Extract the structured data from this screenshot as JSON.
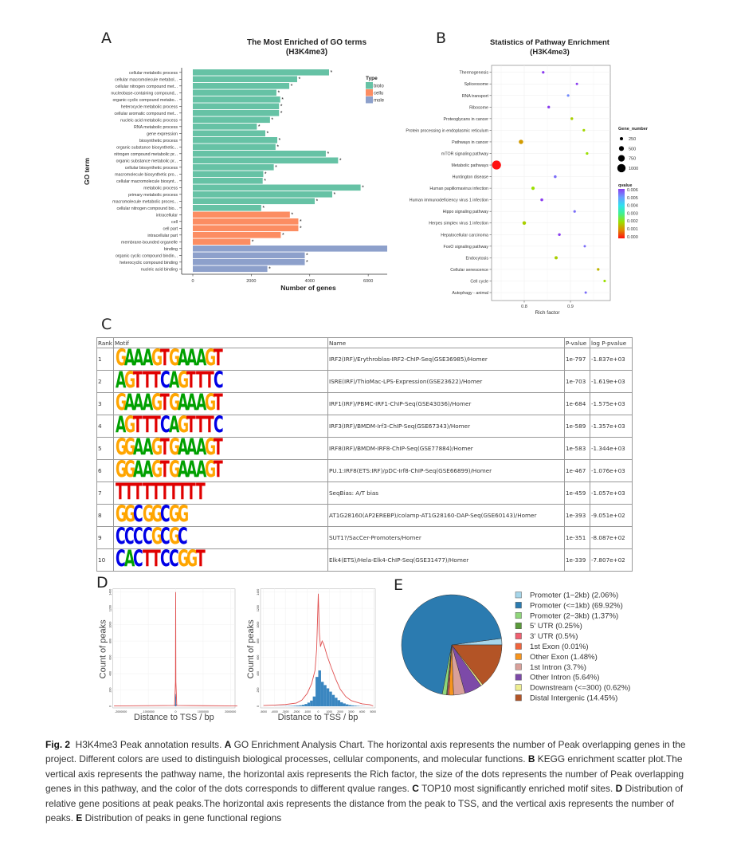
{
  "panels": {
    "a": "A",
    "b": "B",
    "c": "C",
    "d": "D",
    "e": "E"
  },
  "chart_data": [
    {
      "type": "bar",
      "orientation": "horizontal",
      "title": "The Most Enriched of GO terms",
      "subtitle": "(H3K4me3)",
      "xlabel": "Number of genes",
      "ylabel": "GO term",
      "xlim": [
        0,
        6650
      ],
      "xticks": [
        "0",
        "2000",
        "4000",
        "6000"
      ],
      "xtick_values": [
        0,
        2000,
        4000,
        6000
      ],
      "legend": {
        "title": "Type",
        "placement": "right",
        "entries": [
          {
            "label": "biolo",
            "color": "#66c2a5"
          },
          {
            "label": "cellu",
            "color": "#fc8d62"
          },
          {
            "label": "mole",
            "color": "#8da0cb"
          }
        ]
      },
      "significance_mark": "*",
      "bars": [
        {
          "term": "cellular metabolic process",
          "value": 4660,
          "type": 0,
          "sig": true
        },
        {
          "term": "cellular macromolecule metabol...",
          "value": 3570,
          "type": 0,
          "sig": true
        },
        {
          "term": "cellular nitrogen compound met...",
          "value": 3300,
          "type": 0,
          "sig": true
        },
        {
          "term": "nucleobase-containing compound...",
          "value": 2860,
          "type": 0,
          "sig": true
        },
        {
          "term": "organic cyclic compound metabo...",
          "value": 2990,
          "type": 0,
          "sig": true
        },
        {
          "term": "heterocycle metabolic process",
          "value": 2950,
          "type": 0,
          "sig": true
        },
        {
          "term": "cellular aromatic compound met...",
          "value": 2950,
          "type": 0,
          "sig": true
        },
        {
          "term": "nucleic acid metabolic process",
          "value": 2640,
          "type": 0,
          "sig": true
        },
        {
          "term": "RNA metabolic process",
          "value": 2190,
          "type": 0,
          "sig": true
        },
        {
          "term": "gene expression",
          "value": 2480,
          "type": 0,
          "sig": true
        },
        {
          "term": "biosynthetic process",
          "value": 2890,
          "type": 0,
          "sig": true
        },
        {
          "term": "organic substance biosynthetic...",
          "value": 2830,
          "type": 0,
          "sig": true
        },
        {
          "term": "nitrogen compound metabolic pr...",
          "value": 4550,
          "type": 0,
          "sig": true
        },
        {
          "term": "organic substance metabolic pr...",
          "value": 4970,
          "type": 0,
          "sig": true
        },
        {
          "term": "cellular biosynthetic process",
          "value": 2770,
          "type": 0,
          "sig": true
        },
        {
          "term": "macromolecule biosynthetic pro...",
          "value": 2410,
          "type": 0,
          "sig": true
        },
        {
          "term": "cellular macromolecule biosynt...",
          "value": 2390,
          "type": 0,
          "sig": true
        },
        {
          "term": "metabolic process",
          "value": 5740,
          "type": 0,
          "sig": true
        },
        {
          "term": "primary metabolic process",
          "value": 4770,
          "type": 0,
          "sig": true
        },
        {
          "term": "macromolecule metabolic proces...",
          "value": 4170,
          "type": 0,
          "sig": true
        },
        {
          "term": "cellular nitrogen compound bio...",
          "value": 2340,
          "type": 0,
          "sig": true
        },
        {
          "term": "intracellular",
          "value": 3320,
          "type": 1,
          "sig": true
        },
        {
          "term": "cell",
          "value": 3610,
          "type": 1,
          "sig": true
        },
        {
          "term": "cell part",
          "value": 3610,
          "type": 1,
          "sig": true
        },
        {
          "term": "intracellular part",
          "value": 3010,
          "type": 1,
          "sig": true
        },
        {
          "term": "membrane-bounded organelle",
          "value": 1970,
          "type": 1,
          "sig": true
        },
        {
          "term": "binding",
          "value": 6650,
          "type": 2,
          "sig": false
        },
        {
          "term": "organic cyclic compound bindin...",
          "value": 3830,
          "type": 2,
          "sig": true
        },
        {
          "term": "heterocyclic compound binding",
          "value": 3830,
          "type": 2,
          "sig": true
        },
        {
          "term": "nucleic acid binding",
          "value": 2550,
          "type": 2,
          "sig": true
        }
      ]
    },
    {
      "type": "scatter",
      "title": "Statistics of Pathway Enrichment",
      "subtitle": "(H3K4me3)",
      "xlabel": "Rich factor",
      "xlim": [
        0.73,
        0.986
      ],
      "xticks": [
        "0.8",
        "0.9"
      ],
      "xtick_values": [
        0.8,
        0.9
      ],
      "grid": true,
      "size_legend": {
        "title": "Gene_number",
        "values": [
          250,
          500,
          750,
          1000
        ],
        "labels": [
          "250",
          "500",
          "750",
          "1000"
        ]
      },
      "color_legend": {
        "title": "qvalue",
        "labels": [
          "0.006",
          "0.005",
          "0.004",
          "0.003",
          "0.002",
          "0.001",
          "0.000"
        ],
        "stops": [
          {
            "v": 0,
            "c": "#ff1010"
          },
          {
            "v": 0.001,
            "c": "#e08a00"
          },
          {
            "v": 0.002,
            "c": "#9be000"
          },
          {
            "v": 0.003,
            "c": "#40f090"
          },
          {
            "v": 0.004,
            "c": "#30e0f0"
          },
          {
            "v": 0.005,
            "c": "#6a9cff"
          },
          {
            "v": 0.006,
            "c": "#8a3cf0"
          }
        ]
      },
      "points": [
        {
          "pathway": "Thermogenesis",
          "rich_factor": 0.841,
          "gene_number": 150,
          "qvalue": 0.006
        },
        {
          "pathway": "Spliceosome",
          "rich_factor": 0.914,
          "gene_number": 120,
          "qvalue": 0.006
        },
        {
          "pathway": "RNA transport",
          "rich_factor": 0.895,
          "gene_number": 140,
          "qvalue": 0.0052
        },
        {
          "pathway": "Ribosome",
          "rich_factor": 0.853,
          "gene_number": 160,
          "qvalue": 0.006
        },
        {
          "pathway": "Proteoglycans in cancer",
          "rich_factor": 0.903,
          "gene_number": 170,
          "qvalue": 0.0018
        },
        {
          "pathway": "Protein processing in endoplasmic reticulum",
          "rich_factor": 0.929,
          "gene_number": 150,
          "qvalue": 0.0019
        },
        {
          "pathway": "Pathways in cancer",
          "rich_factor": 0.793,
          "gene_number": 420,
          "qvalue": 0.0012
        },
        {
          "pathway": "mTOR signaling pathway",
          "rich_factor": 0.936,
          "gene_number": 150,
          "qvalue": 0.002
        },
        {
          "pathway": "Metabolic pathways",
          "rich_factor": 0.74,
          "gene_number": 1100,
          "qvalue": 0.0
        },
        {
          "pathway": "Huntington disease",
          "rich_factor": 0.867,
          "gene_number": 180,
          "qvalue": 0.0055
        },
        {
          "pathway": "Human papillomavirus infection",
          "rich_factor": 0.819,
          "gene_number": 260,
          "qvalue": 0.002
        },
        {
          "pathway": "Human immunodeficiency virus 1 infection",
          "rich_factor": 0.838,
          "gene_number": 190,
          "qvalue": 0.006
        },
        {
          "pathway": "Hippo signaling pathway",
          "rich_factor": 0.909,
          "gene_number": 140,
          "qvalue": 0.0055
        },
        {
          "pathway": "Herpes simplex virus 1 infection",
          "rich_factor": 0.8,
          "gene_number": 300,
          "qvalue": 0.0018
        },
        {
          "pathway": "Hepatocellular carcinoma",
          "rich_factor": 0.876,
          "gene_number": 170,
          "qvalue": 0.006
        },
        {
          "pathway": "FoxO signaling pathway",
          "rich_factor": 0.931,
          "gene_number": 120,
          "qvalue": 0.0055
        },
        {
          "pathway": "Endocytosis",
          "rich_factor": 0.869,
          "gene_number": 230,
          "qvalue": 0.0018
        },
        {
          "pathway": "Cellular senescence",
          "rich_factor": 0.96,
          "gene_number": 160,
          "qvalue": 0.0015
        },
        {
          "pathway": "Cell cycle",
          "rich_factor": 0.974,
          "gene_number": 130,
          "qvalue": 0.002
        },
        {
          "pathway": "Autophagy - animal",
          "rich_factor": 0.933,
          "gene_number": 120,
          "qvalue": 0.0055
        }
      ]
    },
    {
      "type": "table",
      "headers": [
        "Rank",
        "Motif",
        "Name",
        "P-value",
        "log P-pvalue"
      ],
      "letter_colors": {
        "A": "#00a000",
        "C": "#0000e6",
        "G": "#ffa500",
        "T": "#e00000"
      },
      "rows": [
        {
          "rank": "1",
          "motif": "GAAAGTGAAAGT",
          "name": "IRF2(IRF)/Erythroblas-IRF2-ChIP-Seq(GSE36985)/Homer",
          "p": "1e-797",
          "logp": "-1.837e+03"
        },
        {
          "rank": "2",
          "motif": "AGTTTCAGTTTC",
          "name": "ISRE(IRF)/ThioMac-LPS-Expression(GSE23622)/Homer",
          "p": "1e-703",
          "logp": "-1.619e+03"
        },
        {
          "rank": "3",
          "motif": "GAAAGTGAAAGT",
          "name": "IRF1(IRF)/PBMC-IRF1-ChIP-Seq(GSE43036)/Homer",
          "p": "1e-684",
          "logp": "-1.575e+03"
        },
        {
          "rank": "4",
          "motif": "AGTTTCAGTTTC",
          "name": "IRF3(IRF)/BMDM-Irf3-ChIP-Seq(GSE67343)/Homer",
          "p": "1e-589",
          "logp": "-1.357e+03"
        },
        {
          "rank": "5",
          "motif": "GGAAGTGAAAGT",
          "name": "IRF8(IRF)/BMDM-IRF8-ChIP-Seq(GSE77884)/Homer",
          "p": "1e-583",
          "logp": "-1.344e+03"
        },
        {
          "rank": "6",
          "motif": "GGAAGTGAAAGT",
          "name": "PU.1:IRF8(ETS:IRF)/pDC-Irf8-ChIP-Seq(GSE66899)/Homer",
          "p": "1e-467",
          "logp": "-1.076e+03"
        },
        {
          "rank": "7",
          "motif": "TTTTTTTTTT",
          "name": "SeqBias: A/T bias",
          "p": "1e-459",
          "logp": "-1.057e+03"
        },
        {
          "rank": "8",
          "motif": "GGCGGCGG",
          "name": "AT1G28160(AP2EREBP)/colamp-AT1G28160-DAP-Seq(GSE60143)/Homer",
          "p": "1e-393",
          "logp": "-9.051e+02"
        },
        {
          "rank": "9",
          "motif": "CCCCGCGC",
          "name": "SUT1?/SacCer-Promoters/Homer",
          "p": "1e-351",
          "logp": "-8.087e+02"
        },
        {
          "rank": "10",
          "motif": "CACTTCCGGT",
          "name": "Elk4(ETS)/Hela-Elk4-ChIP-Seq(GSE31477)/Homer",
          "p": "1e-339",
          "logp": "-7.807e+02"
        }
      ]
    },
    {
      "type": "line",
      "xlabel": "Distance to TSS / bp",
      "ylabel": "Count of peaks",
      "xlim": [
        -2250000,
        2250000
      ],
      "ylim": [
        0,
        1400
      ],
      "xticks": [
        "-2000000",
        "-1000000",
        "0",
        "1000000",
        "2000000"
      ],
      "xtick_values": [
        -2000000,
        -1000000,
        0,
        1000000,
        2000000
      ],
      "yticks": [
        "0",
        "200",
        "400",
        "600",
        "800",
        "1000",
        "1200",
        "1400"
      ],
      "line_color": "#e05050",
      "hist_color": "#3a86c0",
      "density": {
        "x": [
          -2250000,
          -40000,
          -8000,
          0,
          8000,
          40000,
          2250000
        ],
        "y": [
          4,
          10,
          300,
          1400,
          300,
          10,
          4
        ]
      },
      "histogram": {
        "x": [
          -15000,
          -5000,
          5000,
          15000
        ],
        "y": [
          20,
          150,
          120,
          25
        ]
      }
    },
    {
      "type": "line",
      "xlabel": "Distance to TSS / bp",
      "ylabel": "Count of peaks",
      "xlim": [
        -5300,
        5300
      ],
      "ylim": [
        0,
        1400
      ],
      "xticks": [
        "-5000",
        "-4000",
        "-3000",
        "-2000",
        "-1000",
        "0",
        "1000",
        "2000",
        "3000",
        "4000",
        "5000"
      ],
      "xtick_values": [
        -5000,
        -4000,
        -3000,
        -2000,
        -1000,
        0,
        1000,
        2000,
        3000,
        4000,
        5000
      ],
      "yticks": [
        "0",
        "200",
        "400",
        "600",
        "800",
        "1000",
        "1200",
        "1400"
      ],
      "line_color": "#e05050",
      "hist_color": "#3a86c0",
      "density": {
        "x": [
          -5000,
          -4000,
          -3000,
          -2000,
          -1500,
          -1000,
          -600,
          -300,
          -150,
          0,
          100,
          200,
          350,
          500,
          800,
          1200,
          1600,
          2000,
          2500,
          3000,
          4000,
          4700,
          5000
        ],
        "y": [
          10,
          15,
          22,
          40,
          75,
          160,
          280,
          440,
          700,
          1380,
          900,
          730,
          800,
          760,
          620,
          470,
          330,
          210,
          120,
          70,
          30,
          20,
          5
        ]
      },
      "histogram": {
        "bin_width": 250,
        "x": [
          -4875,
          -4625,
          -4375,
          -4125,
          -3875,
          -3625,
          -3375,
          -3125,
          -2875,
          -2625,
          -2375,
          -2125,
          -1875,
          -1625,
          -1375,
          -1125,
          -875,
          -625,
          -375,
          -125,
          125,
          375,
          625,
          875,
          1125,
          1375,
          1625,
          1875,
          2125,
          2375,
          2625,
          2875,
          3125,
          3375,
          3625,
          3875,
          4125,
          4375,
          4625,
          4875
        ],
        "y": [
          0,
          0,
          0,
          0,
          1,
          1,
          2,
          2,
          3,
          4,
          5,
          7,
          9,
          12,
          18,
          28,
          45,
          70,
          120,
          360,
          440,
          300,
          260,
          220,
          180,
          140,
          105,
          75,
          50,
          35,
          24,
          16,
          11,
          8,
          5,
          3,
          2,
          1,
          1,
          0
        ]
      }
    },
    {
      "type": "pie",
      "direction": "counterclockwise",
      "start": "east",
      "slices": [
        {
          "label": "Promoter (1−2kb) (2.06%)",
          "value": 2.06,
          "color": "#a6d6ea"
        },
        {
          "label": "Promoter (<=1kb) (69.92%)",
          "value": 69.92,
          "color": "#2b7bb0"
        },
        {
          "label": "Promoter (2−3kb) (1.37%)",
          "value": 1.37,
          "color": "#8fd67a"
        },
        {
          "label": "5' UTR (0.25%)",
          "value": 0.25,
          "color": "#5a9a3a"
        },
        {
          "label": "3' UTR (0.5%)",
          "value": 0.5,
          "color": "#f06070"
        },
        {
          "label": "1st Exon (0.01%)",
          "value": 0.01,
          "color": "#f0643c"
        },
        {
          "label": "Other Exon (1.48%)",
          "value": 1.48,
          "color": "#f7941d"
        },
        {
          "label": "1st Intron (3.7%)",
          "value": 3.7,
          "color": "#d9a09a"
        },
        {
          "label": "Other Intron (5.64%)",
          "value": 5.64,
          "color": "#7d4aa8"
        },
        {
          "label": "Downstream (<=300) (0.62%)",
          "value": 0.62,
          "color": "#eeee90"
        },
        {
          "label": "Distal Intergenic (14.45%)",
          "value": 14.45,
          "color": "#b35426"
        }
      ]
    }
  ],
  "caption": [
    {
      "bold": true,
      "text": "Fig. 2"
    },
    {
      "bold": false,
      "text": "  H3K4me3 Peak annotation results. "
    },
    {
      "bold": true,
      "text": "A"
    },
    {
      "bold": false,
      "text": " GO Enrichment Analysis Chart. The horizontal axis represents the number of Peak overlapping genes in the project. Different colors are used to distinguish biological processes, cellular components, and molecular functions. "
    },
    {
      "bold": true,
      "text": "B"
    },
    {
      "bold": false,
      "text": " KEGG enrichment scatter plot.The vertical axis represents the pathway name, the horizontal axis represents the Rich factor, the size of the dots represents the number of Peak overlapping genes in this pathway, and the color of the dots corresponds to different qvalue ranges. "
    },
    {
      "bold": true,
      "text": "C"
    },
    {
      "bold": false,
      "text": " TOP10 most significantly enriched motif sites. "
    },
    {
      "bold": true,
      "text": "D"
    },
    {
      "bold": false,
      "text": " Distribution of relative gene positions at peak peaks.The horizontal axis represents the distance from the peak to TSS, and the vertical axis represents the number of peaks. "
    },
    {
      "bold": true,
      "text": "E"
    },
    {
      "bold": false,
      "text": " Distribution of peaks in gene functional regions"
    }
  ]
}
